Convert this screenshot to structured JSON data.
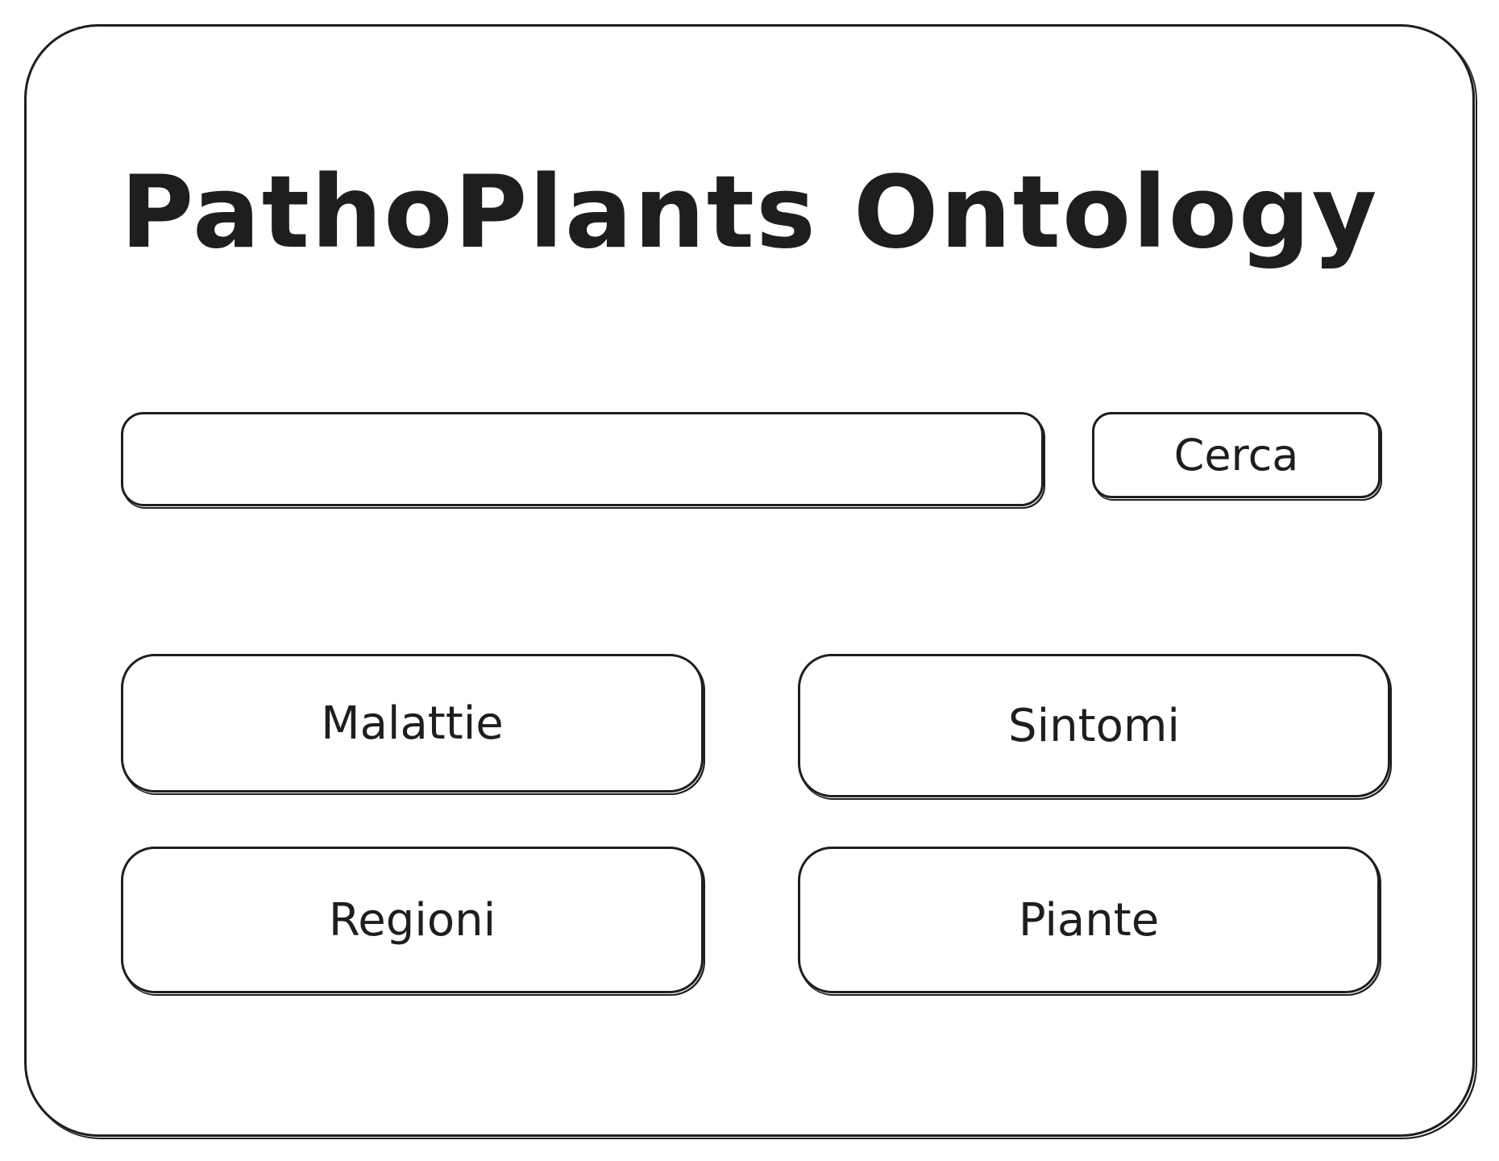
{
  "app": {
    "title": "PathoPlants Ontology"
  },
  "search": {
    "value": "",
    "placeholder": "",
    "button_label": "Cerca"
  },
  "categories": [
    {
      "label": "Malattie"
    },
    {
      "label": "Sintomi"
    },
    {
      "label": "Regioni"
    },
    {
      "label": "Piante"
    }
  ],
  "colors": {
    "stroke": "#1e1e1e",
    "background": "#ffffff"
  }
}
